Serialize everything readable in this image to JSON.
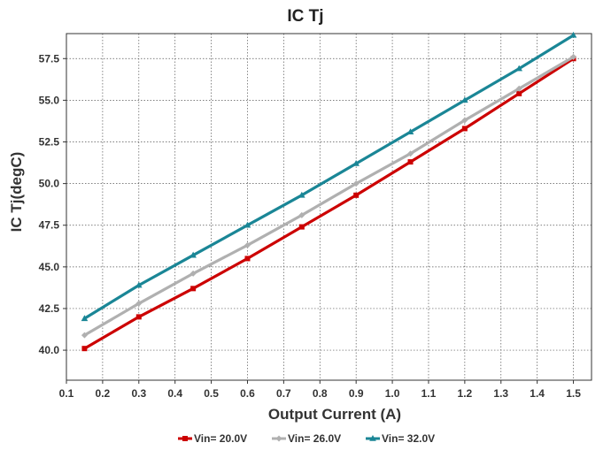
{
  "chart_data": {
    "type": "line",
    "title": "IC Tj",
    "xlabel": "Output Current (A)",
    "ylabel": "IC Tj(degC)",
    "xlim": [
      0.1,
      1.55
    ],
    "ylim": [
      38.2,
      59.0
    ],
    "x_ticks": [
      "0.1",
      "0.2",
      "0.3",
      "0.4",
      "0.5",
      "0.6",
      "0.7",
      "0.8",
      "0.9",
      "1.0",
      "1.1",
      "1.2",
      "1.3",
      "1.4",
      "1.5"
    ],
    "y_ticks": [
      "40.0",
      "42.5",
      "45.0",
      "47.5",
      "50.0",
      "52.5",
      "55.0",
      "57.5"
    ],
    "grid": true,
    "legend_position": "bottom",
    "x": [
      0.15,
      0.3,
      0.45,
      0.6,
      0.75,
      0.9,
      1.05,
      1.2,
      1.35,
      1.5
    ],
    "series": [
      {
        "name": "Vin= 20.0V",
        "color": "#cc0000",
        "marker": "square",
        "values": [
          40.1,
          42.0,
          43.7,
          45.5,
          47.4,
          49.3,
          51.3,
          53.3,
          55.4,
          57.5
        ]
      },
      {
        "name": "Vin= 26.0V",
        "color": "#b0b0b0",
        "marker": "diamond",
        "values": [
          40.9,
          42.8,
          44.6,
          46.3,
          48.1,
          50.0,
          51.8,
          53.8,
          55.7,
          57.6
        ]
      },
      {
        "name": "Vin= 32.0V",
        "color": "#1a8696",
        "marker": "triangle",
        "values": [
          41.9,
          43.9,
          45.7,
          47.5,
          49.3,
          51.2,
          53.1,
          55.0,
          56.9,
          58.9
        ]
      }
    ]
  }
}
